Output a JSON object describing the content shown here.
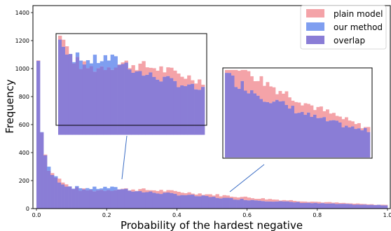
{
  "chart_data": {
    "type": "bar",
    "subtype": "overlapping-histogram",
    "xlabel": "Probability of the hardest negative",
    "ylabel": "Frequency",
    "xlim": [
      0,
      1.0
    ],
    "ylim": [
      0,
      1450
    ],
    "xticks": [
      "0.0",
      "0.2",
      "0.4",
      "0.6",
      "0.8",
      "1.0"
    ],
    "yticks": [
      "0",
      "200",
      "400",
      "600",
      "800",
      "1000",
      "1200",
      "1400"
    ],
    "grid": false,
    "legend_position": "top-right",
    "colors": {
      "plain_model": "#f4a3a8",
      "our_method": "#7f9ef0",
      "overlap": "#8a7dd6"
    },
    "series": [
      {
        "name": "plain model",
        "legend_label": "plain model"
      },
      {
        "name": "our method",
        "legend_label": "our method"
      },
      {
        "name": "overlap",
        "legend_label": "overlap"
      }
    ],
    "plain_model_keypoints": [
      [
        0.0,
        1420
      ],
      [
        0.01,
        700
      ],
      [
        0.02,
        460
      ],
      [
        0.03,
        320
      ],
      [
        0.04,
        260
      ],
      [
        0.06,
        220
      ],
      [
        0.08,
        175
      ],
      [
        0.1,
        150
      ],
      [
        0.13,
        135
      ],
      [
        0.16,
        130
      ],
      [
        0.2,
        135
      ],
      [
        0.25,
        140
      ],
      [
        0.3,
        135
      ],
      [
        0.35,
        130
      ],
      [
        0.4,
        120
      ],
      [
        0.45,
        110
      ],
      [
        0.5,
        100
      ],
      [
        0.55,
        90
      ],
      [
        0.6,
        80
      ],
      [
        0.65,
        70
      ],
      [
        0.7,
        62
      ],
      [
        0.75,
        55
      ],
      [
        0.8,
        48
      ],
      [
        0.85,
        42
      ],
      [
        0.9,
        36
      ],
      [
        0.95,
        30
      ],
      [
        1.0,
        26
      ]
    ],
    "our_method_keypoints": [
      [
        0.0,
        1400
      ],
      [
        0.01,
        690
      ],
      [
        0.02,
        450
      ],
      [
        0.03,
        310
      ],
      [
        0.04,
        255
      ],
      [
        0.06,
        210
      ],
      [
        0.08,
        170
      ],
      [
        0.1,
        155
      ],
      [
        0.13,
        145
      ],
      [
        0.16,
        145
      ],
      [
        0.2,
        150
      ],
      [
        0.25,
        140
      ],
      [
        0.3,
        120
      ],
      [
        0.35,
        112
      ],
      [
        0.4,
        102
      ],
      [
        0.45,
        92
      ],
      [
        0.5,
        82
      ],
      [
        0.55,
        72
      ],
      [
        0.6,
        64
      ],
      [
        0.65,
        56
      ],
      [
        0.7,
        50
      ],
      [
        0.75,
        44
      ],
      [
        0.8,
        38
      ],
      [
        0.85,
        34
      ],
      [
        0.9,
        30
      ],
      [
        0.95,
        26
      ],
      [
        1.0,
        24
      ]
    ],
    "insets": [
      {
        "name": "low-range-zoom",
        "xrange": [
          0.06,
          0.48
        ]
      },
      {
        "name": "high-range-zoom",
        "xrange": [
          0.53,
          0.99
        ]
      }
    ]
  }
}
